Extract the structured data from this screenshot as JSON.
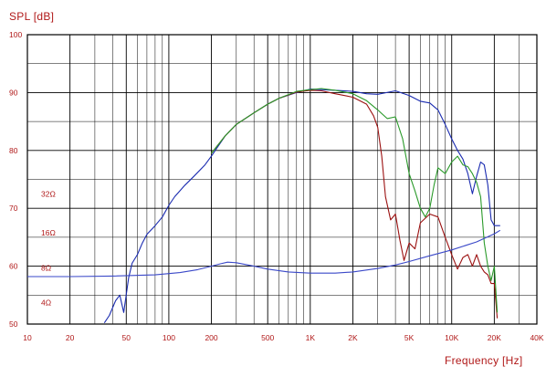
{
  "chart_data": {
    "type": "line",
    "ylabel": "SPL [dB]",
    "xlabel": "Frequency [Hz]",
    "x_scale": "log",
    "xlim": [
      10,
      40000
    ],
    "ylim": [
      50,
      100
    ],
    "grid": true,
    "colors": {
      "axis_text": "#b01818",
      "grid": "#000000",
      "blue": "#1a2bb0",
      "red": "#9b1010",
      "green": "#2a9a2a",
      "impedance": "#3a48c8"
    },
    "x_ticks": [
      {
        "v": 10,
        "label": "10"
      },
      {
        "v": 20,
        "label": "20"
      },
      {
        "v": 50,
        "label": "50"
      },
      {
        "v": 100,
        "label": "100"
      },
      {
        "v": 200,
        "label": "200"
      },
      {
        "v": 500,
        "label": "500"
      },
      {
        "v": 1000,
        "label": "1K"
      },
      {
        "v": 2000,
        "label": "2K"
      },
      {
        "v": 5000,
        "label": "5K"
      },
      {
        "v": 10000,
        "label": "10K"
      },
      {
        "v": 20000,
        "label": "20K"
      },
      {
        "v": 40000,
        "label": "40K"
      }
    ],
    "y_ticks": [
      {
        "v": 50,
        "label": "50"
      },
      {
        "v": 60,
        "label": "60"
      },
      {
        "v": 70,
        "label": "70"
      },
      {
        "v": 80,
        "label": "80"
      },
      {
        "v": 90,
        "label": "90"
      },
      {
        "v": 100,
        "label": "100"
      }
    ],
    "impedance_labels": [
      {
        "label": "32Ω",
        "y": 72.5
      },
      {
        "label": "16Ω",
        "y": 65.8
      },
      {
        "label": "8Ω",
        "y": 59.7
      },
      {
        "label": "4Ω",
        "y": 53.7
      }
    ],
    "series": [
      {
        "color": "#1a2bb0",
        "x": [
          35,
          38,
          42,
          45,
          48,
          52,
          55,
          60,
          65,
          70,
          80,
          90,
          100,
          110,
          130,
          150,
          180,
          200,
          250,
          300,
          400,
          500,
          600,
          800,
          1000,
          1200,
          1500,
          2000,
          2500,
          3000,
          4000,
          5000,
          6000,
          7000,
          8000,
          9000,
          10000,
          11000,
          12000,
          13000,
          14000,
          15000,
          16000,
          17000,
          18000,
          19000,
          20000,
          21000,
          22000
        ],
        "y": [
          50.2,
          51.5,
          54,
          55,
          52,
          58,
          60.5,
          62,
          64,
          65.5,
          67,
          68.5,
          70.5,
          72,
          74,
          75.5,
          77.5,
          79,
          82.5,
          84.5,
          86.5,
          88,
          89,
          90,
          90.6,
          90.5,
          90.4,
          90.2,
          89.8,
          89.7,
          90.3,
          89.5,
          88.5,
          88.2,
          87,
          84.5,
          82,
          80,
          78.5,
          76,
          72.5,
          75.5,
          78,
          77.5,
          74,
          68,
          67,
          67,
          67
        ]
      },
      {
        "color": "#9b1010",
        "x": [
          200,
          250,
          300,
          400,
          500,
          600,
          800,
          1000,
          1200,
          1500,
          2000,
          2500,
          2800,
          3000,
          3200,
          3400,
          3700,
          4000,
          4300,
          4600,
          5000,
          5500,
          6000,
          7000,
          8000,
          9000,
          10000,
          11000,
          12000,
          13000,
          14000,
          15000,
          16000,
          17000,
          18000,
          19000,
          20000,
          21000
        ],
        "y": [
          79.5,
          82.5,
          84.5,
          86.5,
          88,
          89,
          90.1,
          90.4,
          90.3,
          89.8,
          89.2,
          88,
          86,
          84,
          79,
          72,
          68,
          69,
          64.5,
          61,
          64,
          63,
          67.5,
          69,
          68.5,
          65,
          62,
          59.5,
          61.5,
          62,
          60,
          62,
          60,
          59,
          58.5,
          57,
          57,
          51
        ]
      },
      {
        "color": "#2a9a2a",
        "x": [
          200,
          250,
          300,
          400,
          500,
          600,
          800,
          1000,
          1200,
          1500,
          2000,
          2500,
          3000,
          3500,
          4000,
          4500,
          5000,
          5500,
          6000,
          6500,
          7000,
          7500,
          8000,
          9000,
          10000,
          11000,
          12000,
          13000,
          14000,
          15000,
          16000,
          17000,
          18000,
          19000,
          20000,
          21000
        ],
        "y": [
          79.5,
          82.5,
          84.5,
          86.5,
          88,
          89,
          90.2,
          90.5,
          90.7,
          90.4,
          89.8,
          88.6,
          87,
          85.5,
          85.8,
          82,
          76,
          73,
          70,
          68.5,
          70,
          74,
          77,
          76,
          78,
          79,
          77.5,
          77.2,
          76,
          74.5,
          72,
          64,
          60,
          57.5,
          60,
          52
        ]
      },
      {
        "color": "#3a48c8",
        "x": [
          10,
          20,
          40,
          80,
          120,
          160,
          200,
          230,
          260,
          300,
          400,
          500,
          700,
          1000,
          1500,
          2000,
          3000,
          4000,
          5000,
          7000,
          10000,
          15000,
          20000,
          22000
        ],
        "y": [
          58.2,
          58.2,
          58.3,
          58.5,
          58.9,
          59.4,
          60,
          60.4,
          60.7,
          60.6,
          60,
          59.5,
          59,
          58.8,
          58.8,
          59,
          59.6,
          60.2,
          60.8,
          61.8,
          62.8,
          64.2,
          65.6,
          66.2
        ]
      }
    ]
  }
}
